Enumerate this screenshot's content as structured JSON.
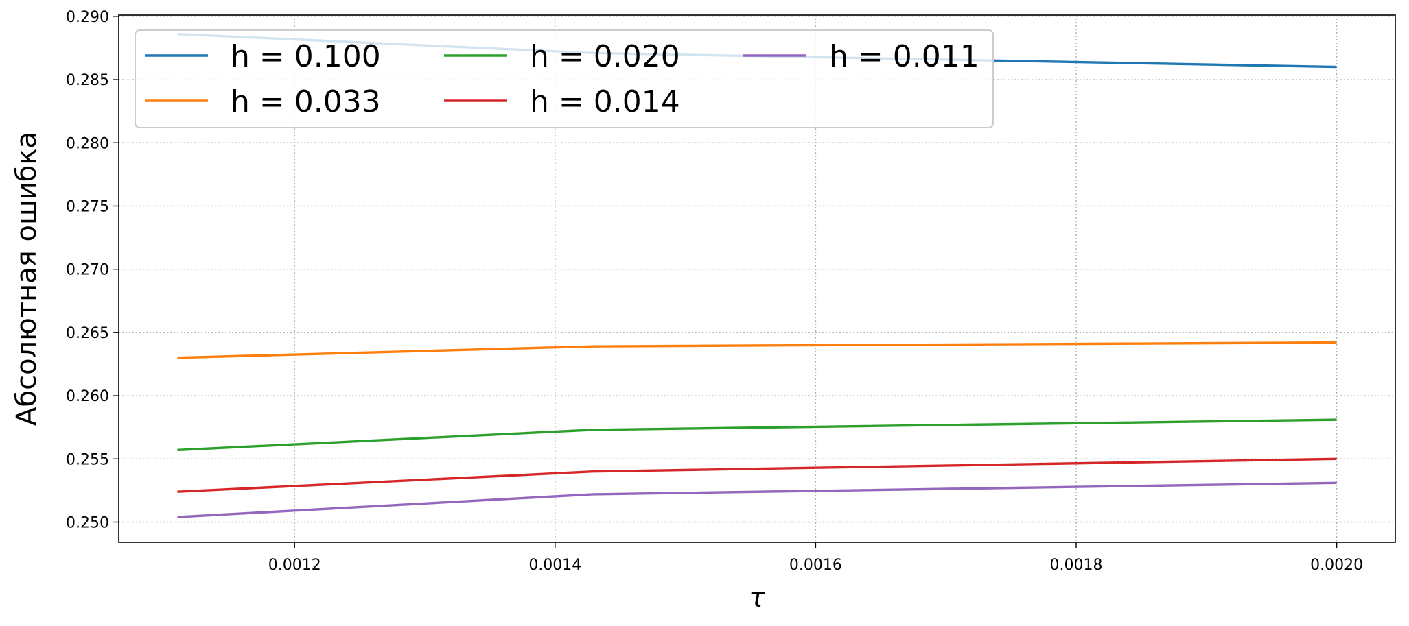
{
  "chart_data": {
    "type": "line",
    "xlabel": "τ",
    "ylabel": "Абсолютная ошибка",
    "x": [
      0.00111,
      0.001429,
      0.002
    ],
    "series": [
      {
        "name": "h = 0.100",
        "color": "#1f77b4",
        "values": [
          0.2886,
          0.2871,
          0.286
        ]
      },
      {
        "name": "h = 0.033",
        "color": "#ff7f0e",
        "values": [
          0.263,
          0.2639,
          0.2642
        ]
      },
      {
        "name": "h = 0.020",
        "color": "#2ca02c",
        "values": [
          0.2557,
          0.2573,
          0.2581
        ]
      },
      {
        "name": "h = 0.014",
        "color": "#d62728",
        "values": [
          0.2524,
          0.254,
          0.255
        ]
      },
      {
        "name": "h = 0.011",
        "color": "#9467bd",
        "values": [
          0.2504,
          0.2522,
          0.2531
        ]
      }
    ],
    "xlim": [
      0.001065,
      0.002045
    ],
    "ylim": [
      0.2484,
      0.2901
    ],
    "x_ticks": [
      "0.0012",
      "0.0014",
      "0.0016",
      "0.0018",
      "0.0020"
    ],
    "y_ticks": [
      "0.250",
      "0.255",
      "0.260",
      "0.265",
      "0.270",
      "0.275",
      "0.280",
      "0.285",
      "0.290"
    ],
    "grid": true,
    "legend": {
      "placement": "upper-left",
      "columns": 3
    }
  }
}
